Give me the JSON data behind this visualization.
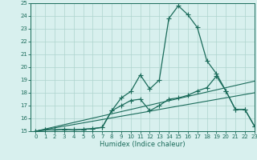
{
  "title": "",
  "xlabel": "Humidex (Indice chaleur)",
  "ylabel": "",
  "x_values": [
    0,
    1,
    2,
    3,
    4,
    5,
    6,
    7,
    8,
    9,
    10,
    11,
    12,
    13,
    14,
    15,
    16,
    17,
    18,
    19,
    20,
    21,
    22,
    23
  ],
  "line_main_y": [
    15.0,
    15.1,
    15.1,
    15.15,
    15.1,
    15.15,
    15.2,
    15.3,
    16.6,
    17.6,
    18.1,
    19.4,
    18.3,
    19.0,
    23.8,
    24.8,
    24.1,
    23.1,
    20.5,
    19.5,
    18.15,
    16.7,
    16.7,
    15.4
  ],
  "line_low_y": [
    15.0,
    15.1,
    15.1,
    15.15,
    15.1,
    15.15,
    15.2,
    15.3,
    16.6,
    17.0,
    17.4,
    17.5,
    16.6,
    17.0,
    17.5,
    17.6,
    17.8,
    18.15,
    18.4,
    19.3,
    18.15,
    16.7,
    16.7,
    15.4
  ],
  "line_diag2_y": [
    15.0,
    15.13,
    15.26,
    15.39,
    15.52,
    15.65,
    15.78,
    15.91,
    16.04,
    16.17,
    16.3,
    16.43,
    16.56,
    16.7,
    16.83,
    16.96,
    17.09,
    17.22,
    17.35,
    17.48,
    17.61,
    17.74,
    17.87,
    18.0
  ],
  "line_diag3_y": [
    15.0,
    15.17,
    15.34,
    15.51,
    15.68,
    15.85,
    16.02,
    16.19,
    16.36,
    16.53,
    16.7,
    16.87,
    17.04,
    17.21,
    17.38,
    17.55,
    17.72,
    17.89,
    18.06,
    18.23,
    18.4,
    18.57,
    18.74,
    18.91
  ],
  "ylim": [
    15,
    25
  ],
  "xlim": [
    -0.5,
    23
  ],
  "yticks": [
    15,
    16,
    17,
    18,
    19,
    20,
    21,
    22,
    23,
    24,
    25
  ],
  "xticks": [
    0,
    1,
    2,
    3,
    4,
    5,
    6,
    7,
    8,
    9,
    10,
    11,
    12,
    13,
    14,
    15,
    16,
    17,
    18,
    19,
    20,
    21,
    22,
    23
  ],
  "line_color": "#1a6b5a",
  "bg_color": "#d8f0ee",
  "grid_color": "#aed4ce",
  "marker": "+",
  "marker_size": 4,
  "lw_main": 0.9,
  "lw_diag": 0.8
}
